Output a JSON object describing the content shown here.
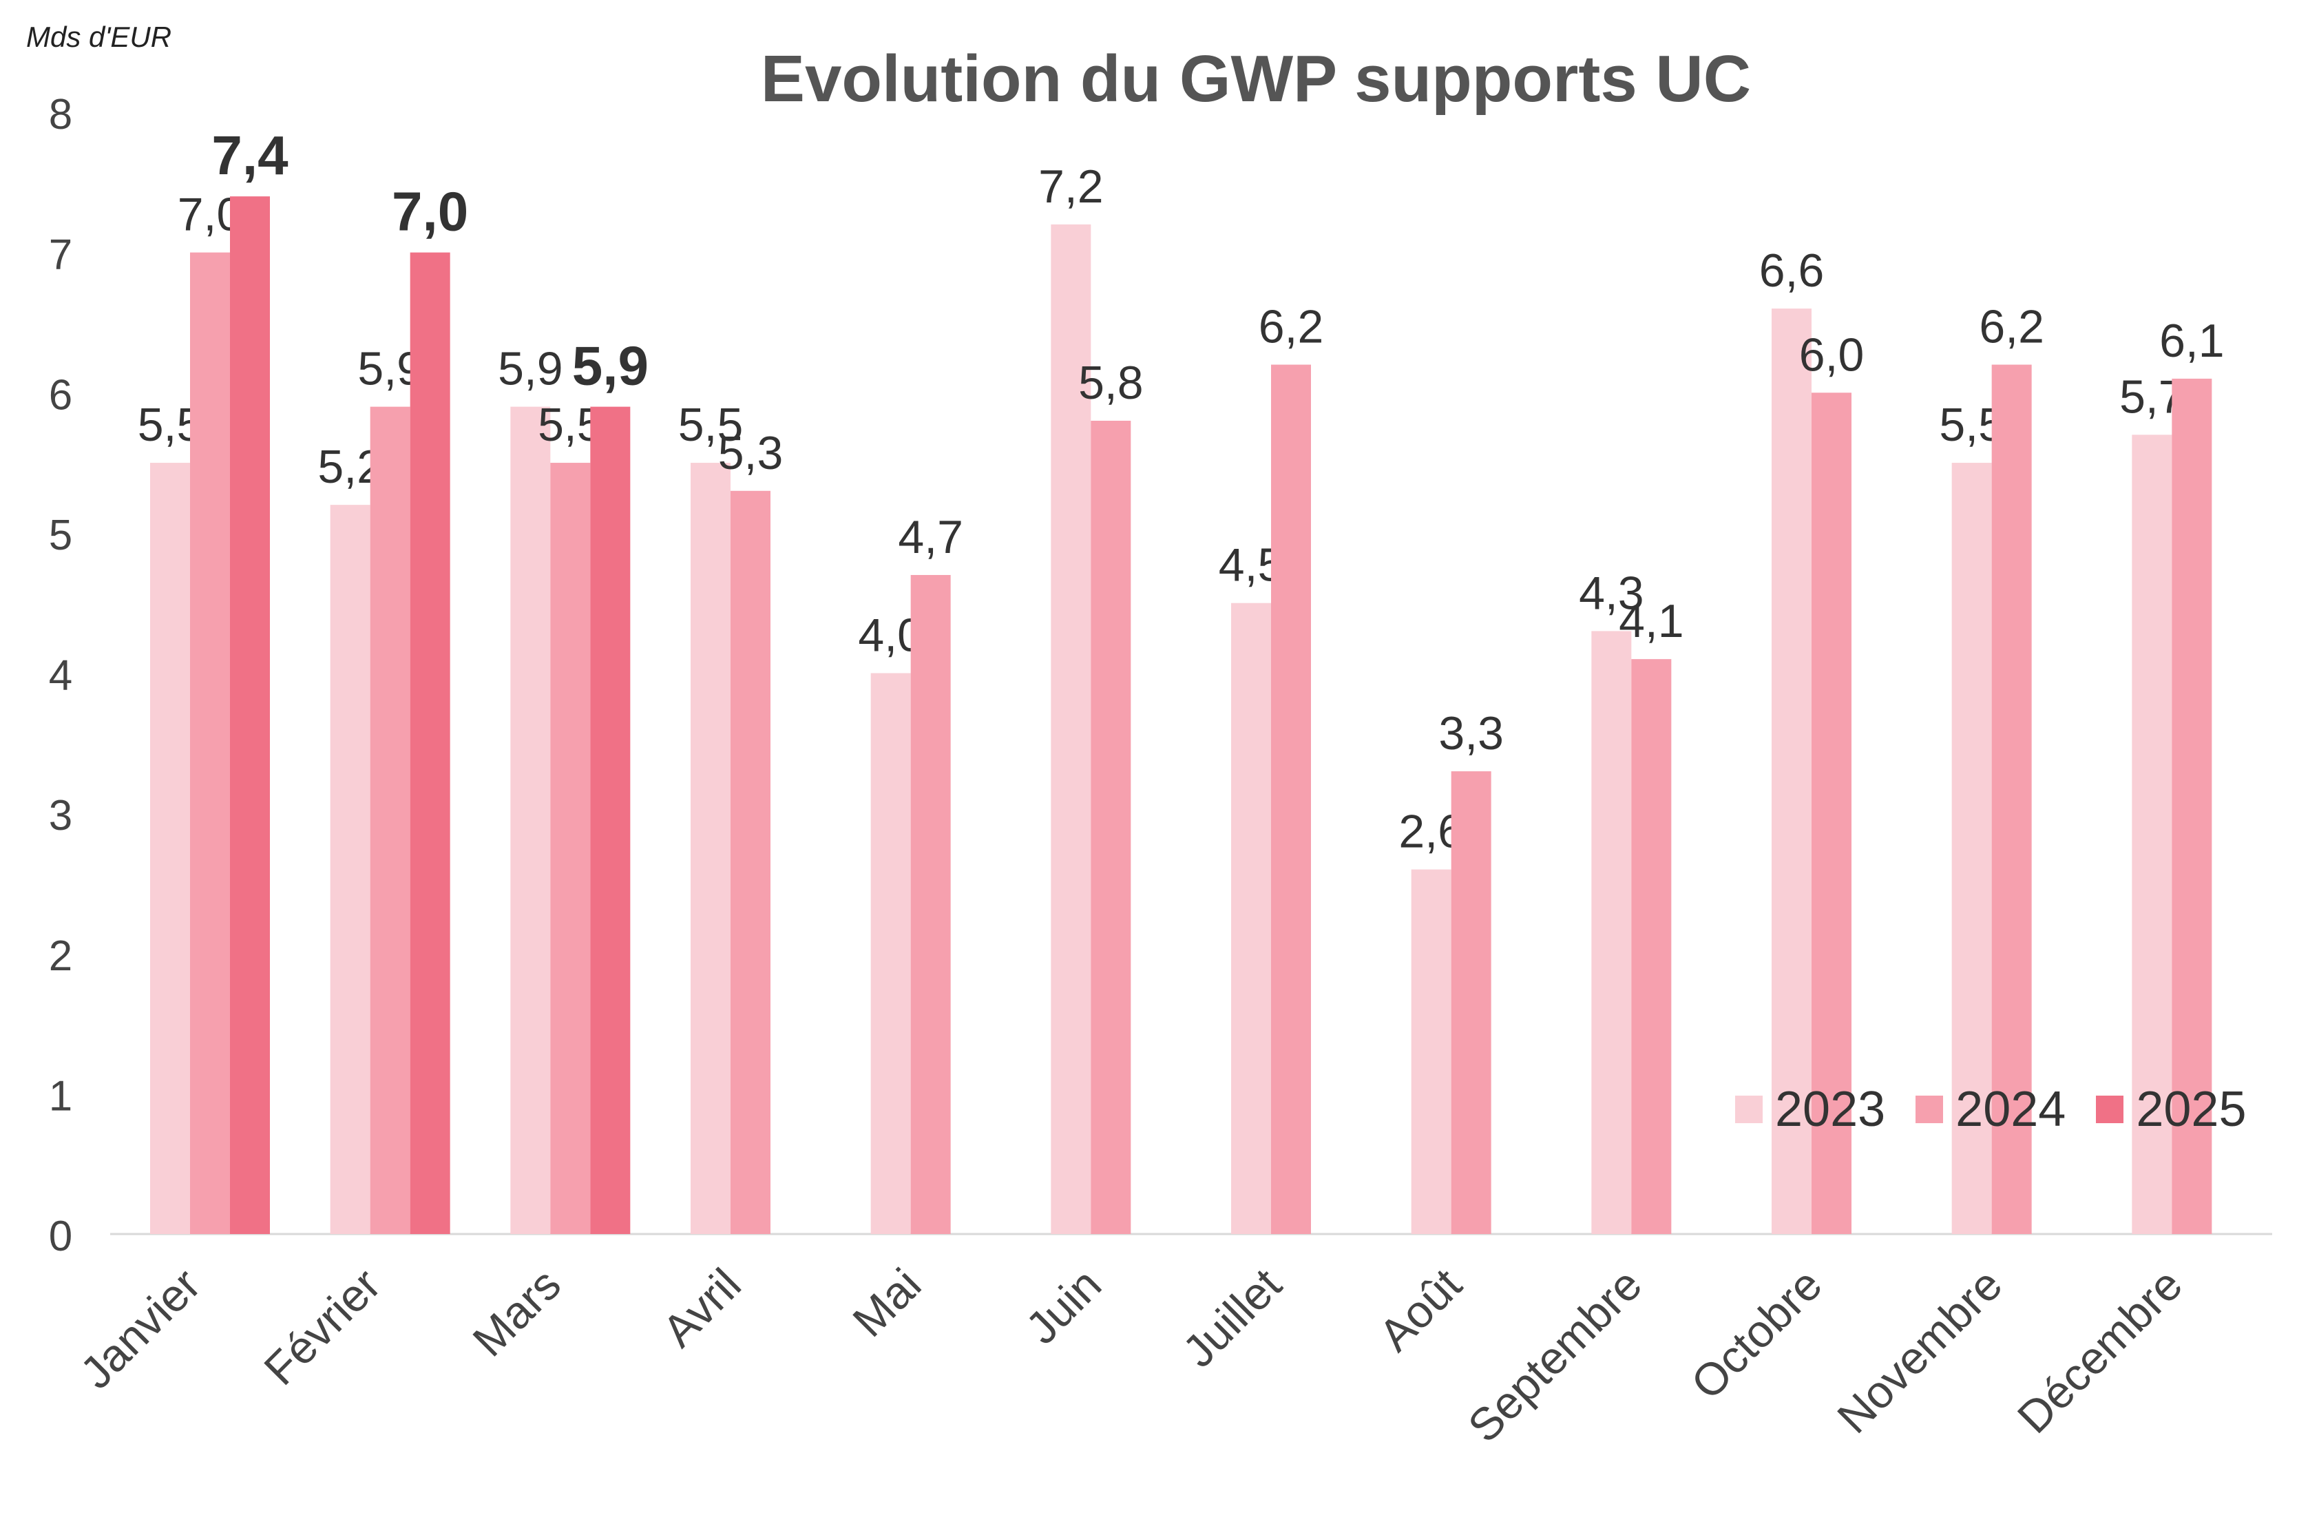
{
  "unit_label": "Mds d'EUR",
  "title": "Evolution du GWP supports UC",
  "colors": {
    "2023": "#f9cfd6",
    "2024": "#f6a0ae",
    "2025": "#f07186"
  },
  "chart_data": {
    "type": "bar",
    "title": "Evolution du GWP supports UC",
    "ylabel": "Mds d'EUR",
    "ylim": [
      0,
      8
    ],
    "yticks": [
      "0",
      "1",
      "2",
      "3",
      "4",
      "5",
      "6",
      "7",
      "8"
    ],
    "categories": [
      "Janvier",
      "Février",
      "Mars",
      "Avril",
      "Mai",
      "Juin",
      "Juillet",
      "Août",
      "Septembre",
      "Octobre",
      "Novembre",
      "Décembre"
    ],
    "series": [
      {
        "name": "2023",
        "values": [
          5.5,
          5.2,
          5.9,
          5.5,
          4.0,
          7.2,
          4.5,
          2.6,
          4.3,
          6.6,
          5.5,
          5.7
        ],
        "labels": [
          "5,5",
          "5,2",
          "5,9",
          "5,5",
          "4,0",
          "7,2",
          "4,5",
          "2,6",
          "4,3",
          "6,6",
          "5,5",
          "5,7"
        ]
      },
      {
        "name": "2024",
        "values": [
          7.0,
          5.9,
          5.5,
          5.3,
          4.7,
          5.8,
          6.2,
          3.3,
          4.1,
          6.0,
          6.2,
          6.1
        ],
        "labels": [
          "7,0",
          "5,9",
          "5,5",
          "5,3",
          "4,7",
          "5,8",
          "6,2",
          "3,3",
          "4,1",
          "6,0",
          "6,2",
          "6,1"
        ]
      },
      {
        "name": "2025",
        "values": [
          7.4,
          7.0,
          5.9,
          null,
          null,
          null,
          null,
          null,
          null,
          null,
          null,
          null
        ],
        "labels": [
          "7,4",
          "7,0",
          "5,9",
          "",
          "",
          "",
          "",
          "",
          "",
          "",
          "",
          ""
        ]
      }
    ],
    "legend": {
      "position": "bottom-right",
      "items": [
        "2023",
        "2024",
        "2025"
      ]
    },
    "grid": false
  }
}
